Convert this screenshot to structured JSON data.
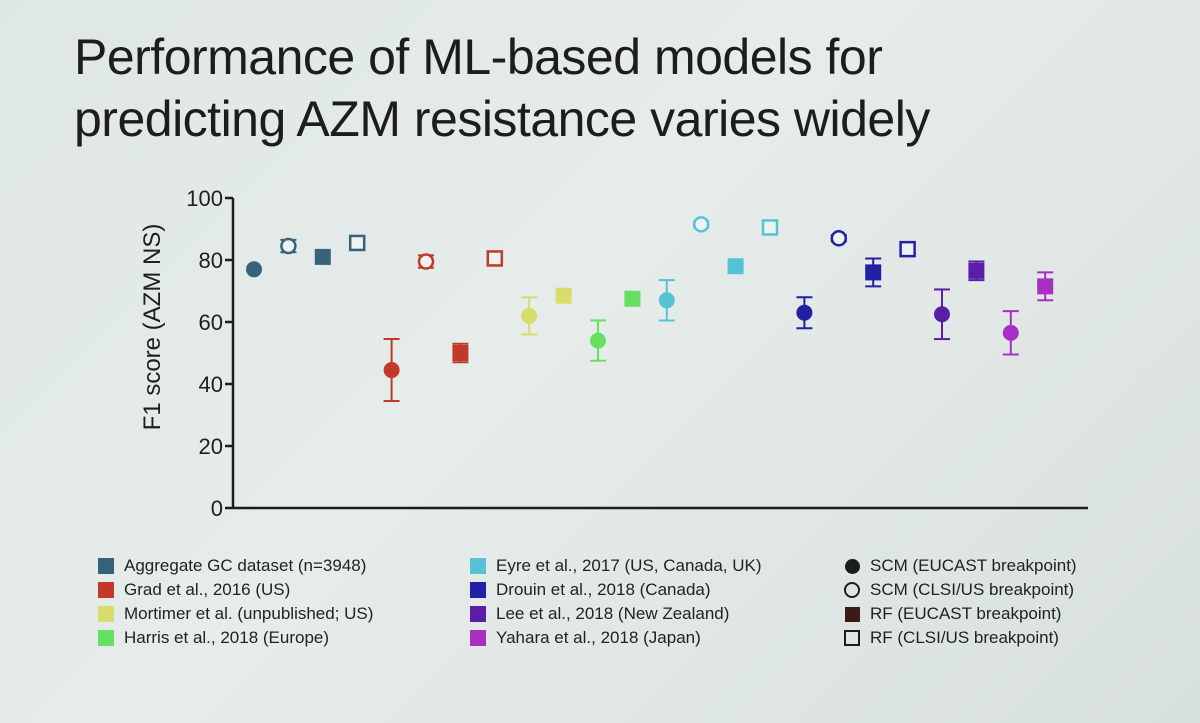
{
  "title": {
    "line1": "Performance of ML-based models for",
    "line2": "predicting AZM resistance varies widely"
  },
  "colors": {
    "aggregate": "#36627a",
    "grad": "#c13a27",
    "mortimer": "#d8dc6a",
    "harris": "#66e063",
    "eyre": "#55c3d6",
    "drouin": "#2320a6",
    "lee": "#5a1ea8",
    "yahara": "#a92ec4"
  },
  "legend_datasets": [
    {
      "key": "aggregate",
      "label": "Aggregate GC dataset (n=3948)"
    },
    {
      "key": "grad",
      "label": "Grad et al., 2016 (US)"
    },
    {
      "key": "mortimer",
      "label": "Mortimer et al. (unpublished; US)"
    },
    {
      "key": "harris",
      "label": "Harris et al., 2018 (Europe)"
    },
    {
      "key": "eyre",
      "label": "Eyre et al., 2017 (US, Canada, UK)"
    },
    {
      "key": "drouin",
      "label": "Drouin et al., 2018 (Canada)"
    },
    {
      "key": "lee",
      "label": "Lee et al., 2018 (New Zealand)"
    },
    {
      "key": "yahara",
      "label": "Yahara et al., 2018 (Japan)"
    }
  ],
  "legend_methods": [
    {
      "symbol": "filled-circle",
      "label": "SCM (EUCAST breakpoint)"
    },
    {
      "symbol": "open-circle",
      "label": "SCM (CLSI/US breakpoint)"
    },
    {
      "symbol": "filled-square",
      "label": "RF (EUCAST breakpoint)"
    },
    {
      "symbol": "open-square",
      "label": "RF (CLSI/US breakpoint)"
    }
  ],
  "chart_data": {
    "type": "scatter",
    "title": "Performance of ML-based models for predicting AZM resistance varies widely",
    "xlabel": "",
    "ylabel": "F1 score (AZM NS)",
    "ylim": [
      0,
      100
    ],
    "yticks": [
      "0",
      "20",
      "40",
      "60",
      "80",
      "100"
    ],
    "grid": false,
    "points": [
      {
        "index": 1,
        "dataset": "aggregate",
        "method": "SCM (EUCAST breakpoint)",
        "marker": "filled-circle",
        "y": 77,
        "err": 0
      },
      {
        "index": 2,
        "dataset": "aggregate",
        "method": "SCM (CLSI/US breakpoint)",
        "marker": "open-circle",
        "y": 84.5,
        "err": 2
      },
      {
        "index": 3,
        "dataset": "aggregate",
        "method": "RF (EUCAST breakpoint)",
        "marker": "filled-square",
        "y": 81,
        "err": 0
      },
      {
        "index": 4,
        "dataset": "aggregate",
        "method": "RF (CLSI/US breakpoint)",
        "marker": "open-square",
        "y": 85.5,
        "err": 1
      },
      {
        "index": 5,
        "dataset": "grad",
        "method": "SCM (EUCAST breakpoint)",
        "marker": "filled-circle",
        "y": 44.5,
        "err": 10
      },
      {
        "index": 6,
        "dataset": "grad",
        "method": "SCM (CLSI/US breakpoint)",
        "marker": "open-circle",
        "y": 79.5,
        "err": 2
      },
      {
        "index": 7,
        "dataset": "grad",
        "method": "RF (EUCAST breakpoint)",
        "marker": "filled-square",
        "y": 50,
        "err": 3
      },
      {
        "index": 8,
        "dataset": "grad",
        "method": "RF (CLSI/US breakpoint)",
        "marker": "open-square",
        "y": 80.5,
        "err": 1
      },
      {
        "index": 9,
        "dataset": "mortimer",
        "method": "SCM (EUCAST breakpoint)",
        "marker": "filled-circle",
        "y": 62,
        "err": 6
      },
      {
        "index": 10,
        "dataset": "mortimer",
        "method": "RF (EUCAST breakpoint)",
        "marker": "filled-square",
        "y": 68.5,
        "err": 1
      },
      {
        "index": 11,
        "dataset": "harris",
        "method": "SCM (EUCAST breakpoint)",
        "marker": "filled-circle",
        "y": 54,
        "err": 6.5
      },
      {
        "index": 12,
        "dataset": "harris",
        "method": "RF (EUCAST breakpoint)",
        "marker": "filled-square",
        "y": 67.5,
        "err": 1
      },
      {
        "index": 13,
        "dataset": "eyre",
        "method": "SCM (EUCAST breakpoint)",
        "marker": "filled-circle",
        "y": 67,
        "err": 6.5
      },
      {
        "index": 14,
        "dataset": "eyre",
        "method": "SCM (CLSI/US breakpoint)",
        "marker": "open-circle",
        "y": 91.5,
        "err": 1
      },
      {
        "index": 15,
        "dataset": "eyre",
        "method": "RF (EUCAST breakpoint)",
        "marker": "filled-square",
        "y": 78,
        "err": 1
      },
      {
        "index": 16,
        "dataset": "eyre",
        "method": "RF (CLSI/US breakpoint)",
        "marker": "open-square",
        "y": 90.5,
        "err": 1
      },
      {
        "index": 17,
        "dataset": "drouin",
        "method": "SCM (EUCAST breakpoint)",
        "marker": "filled-circle",
        "y": 63,
        "err": 5
      },
      {
        "index": 18,
        "dataset": "drouin",
        "method": "SCM (CLSI/US breakpoint)",
        "marker": "open-circle",
        "y": 87,
        "err": 1
      },
      {
        "index": 19,
        "dataset": "drouin",
        "method": "RF (EUCAST breakpoint)",
        "marker": "filled-square",
        "y": 76,
        "err": 4.5
      },
      {
        "index": 20,
        "dataset": "drouin",
        "method": "RF (CLSI/US breakpoint)",
        "marker": "open-square",
        "y": 83.5,
        "err": 1
      },
      {
        "index": 21,
        "dataset": "lee",
        "method": "SCM (EUCAST breakpoint)",
        "marker": "filled-circle",
        "y": 62.5,
        "err": 8
      },
      {
        "index": 22,
        "dataset": "lee",
        "method": "RF (EUCAST breakpoint)",
        "marker": "filled-square",
        "y": 76.5,
        "err": 3
      },
      {
        "index": 23,
        "dataset": "yahara",
        "method": "SCM (EUCAST breakpoint)",
        "marker": "filled-circle",
        "y": 56.5,
        "err": 7
      },
      {
        "index": 24,
        "dataset": "yahara",
        "method": "RF (EUCAST breakpoint)",
        "marker": "filled-square",
        "y": 71.5,
        "err": 4.5
      }
    ]
  }
}
